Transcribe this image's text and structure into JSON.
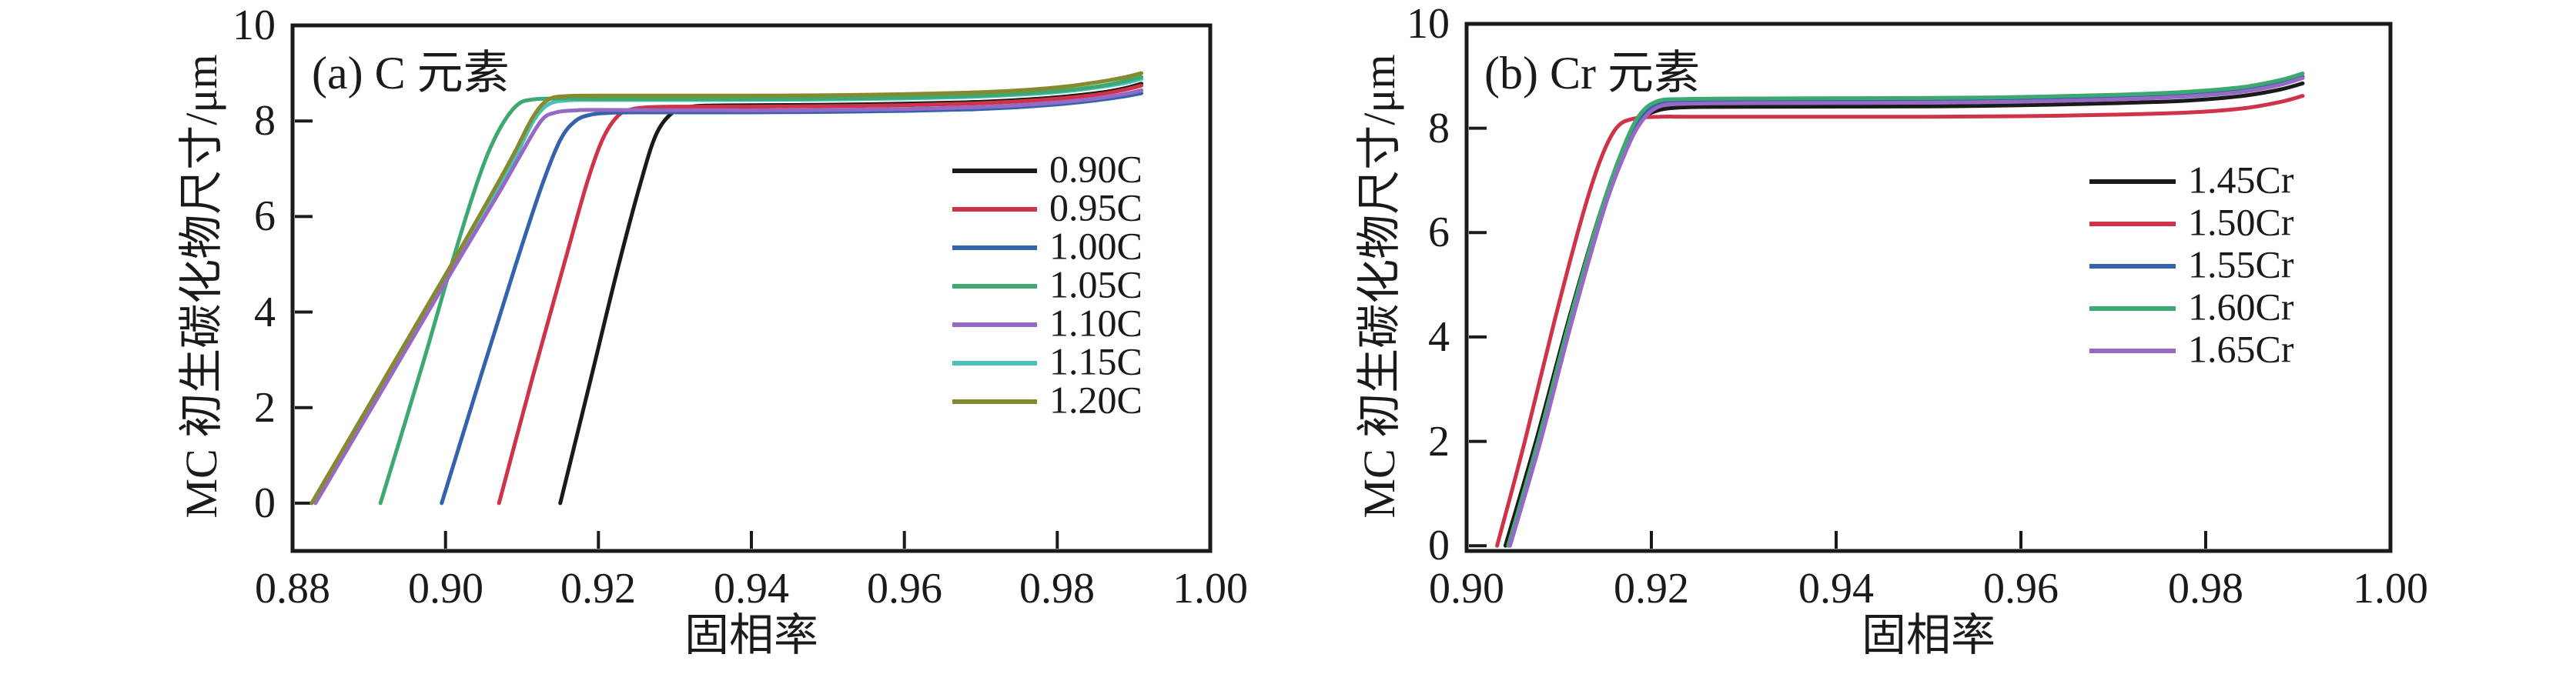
{
  "figure": {
    "background": "#ffffff",
    "frame_color": "#1a1a1a"
  },
  "chart_data": [
    {
      "type": "line",
      "panel": "a",
      "title": "(a) C 元素",
      "xlabel": "固相率",
      "ylabel": "MC 初生碳化物尺寸/μm",
      "xlim": [
        0.88,
        1.0
      ],
      "ylim": [
        -1,
        10
      ],
      "grid": false,
      "legend_position": "right-center",
      "x_ticks": {
        "values": [
          0.88,
          0.9,
          0.92,
          0.94,
          0.96,
          0.98,
          1.0
        ],
        "labels": [
          "0.88",
          "0.90",
          "0.92",
          "0.94",
          "0.96",
          "0.98",
          "1.00"
        ]
      },
      "y_ticks": {
        "values": [
          10,
          8,
          6,
          4,
          2,
          0
        ],
        "labels": [
          "10",
          "8",
          "6",
          "4",
          "2",
          "0"
        ]
      },
      "series": [
        {
          "name": "0.90C",
          "color": "#1a1a1a",
          "z": 1,
          "points": [
            [
              0.915,
              0
            ],
            [
              0.919,
              2.6
            ],
            [
              0.9225,
              4.9
            ],
            [
              0.9255,
              6.7
            ],
            [
              0.9275,
              7.7
            ],
            [
              0.9295,
              8.15
            ],
            [
              0.9315,
              8.28
            ],
            [
              0.934,
              8.32
            ],
            [
              0.94,
              8.33
            ],
            [
              0.95,
              8.34
            ],
            [
              0.96,
              8.36
            ],
            [
              0.968,
              8.39
            ],
            [
              0.975,
              8.44
            ],
            [
              0.981,
              8.51
            ],
            [
              0.986,
              8.6
            ],
            [
              0.989,
              8.69
            ],
            [
              0.991,
              8.78
            ]
          ]
        },
        {
          "name": "0.95C",
          "color": "#cf3349",
          "z": 2,
          "points": [
            [
              0.907,
              0
            ],
            [
              0.9115,
              2.7
            ],
            [
              0.9155,
              5.0
            ],
            [
              0.9185,
              6.7
            ],
            [
              0.9205,
              7.6
            ],
            [
              0.9225,
              8.1
            ],
            [
              0.9245,
              8.25
            ],
            [
              0.927,
              8.29
            ],
            [
              0.93,
              8.3
            ],
            [
              0.94,
              8.3
            ],
            [
              0.95,
              8.31
            ],
            [
              0.96,
              8.33
            ],
            [
              0.968,
              8.36
            ],
            [
              0.975,
              8.41
            ],
            [
              0.981,
              8.48
            ],
            [
              0.986,
              8.57
            ],
            [
              0.989,
              8.66
            ],
            [
              0.991,
              8.74
            ]
          ]
        },
        {
          "name": "1.00C",
          "color": "#3463ad",
          "z": 3,
          "points": [
            [
              0.8995,
              0
            ],
            [
              0.9045,
              2.6
            ],
            [
              0.909,
              4.9
            ],
            [
              0.9125,
              6.6
            ],
            [
              0.915,
              7.6
            ],
            [
              0.917,
              8.0
            ],
            [
              0.919,
              8.13
            ],
            [
              0.9215,
              8.17
            ],
            [
              0.925,
              8.18
            ],
            [
              0.94,
              8.18
            ],
            [
              0.95,
              8.19
            ],
            [
              0.96,
              8.21
            ],
            [
              0.968,
              8.24
            ],
            [
              0.975,
              8.29
            ],
            [
              0.981,
              8.36
            ],
            [
              0.986,
              8.45
            ],
            [
              0.989,
              8.52
            ],
            [
              0.991,
              8.58
            ]
          ]
        },
        {
          "name": "1.05C",
          "color": "#3ea871",
          "z": 4,
          "points": [
            [
              0.8915,
              0
            ],
            [
              0.897,
              2.9
            ],
            [
              0.9008,
              5.0
            ],
            [
              0.9035,
              6.4
            ],
            [
              0.9055,
              7.3
            ],
            [
              0.9075,
              7.95
            ],
            [
              0.9095,
              8.35
            ],
            [
              0.9115,
              8.45
            ],
            [
              0.915,
              8.47
            ],
            [
              0.92,
              8.46
            ],
            [
              0.94,
              8.46
            ],
            [
              0.95,
              8.47
            ],
            [
              0.96,
              8.49
            ],
            [
              0.968,
              8.52
            ],
            [
              0.975,
              8.57
            ],
            [
              0.981,
              8.64
            ],
            [
              0.986,
              8.74
            ],
            [
              0.989,
              8.84
            ],
            [
              0.991,
              8.92
            ]
          ]
        },
        {
          "name": "1.10C",
          "color": "#9569c4",
          "z": 5,
          "points": [
            [
              0.883,
              0
            ],
            [
              0.8935,
              2.85
            ],
            [
              0.901,
              4.9
            ],
            [
              0.907,
              6.5
            ],
            [
              0.9095,
              7.2
            ],
            [
              0.9125,
              8.0
            ],
            [
              0.9145,
              8.18
            ],
            [
              0.917,
              8.22
            ],
            [
              0.92,
              8.23
            ],
            [
              0.94,
              8.22
            ],
            [
              0.95,
              8.23
            ],
            [
              0.96,
              8.25
            ],
            [
              0.968,
              8.28
            ],
            [
              0.975,
              8.33
            ],
            [
              0.981,
              8.4
            ],
            [
              0.986,
              8.49
            ],
            [
              0.989,
              8.57
            ],
            [
              0.991,
              8.64
            ]
          ]
        },
        {
          "name": "1.15C",
          "color": "#4cc0b8",
          "z": 0,
          "points": [
            [
              0.8825,
              0
            ],
            [
              0.893,
              2.85
            ],
            [
              0.9008,
              4.95
            ],
            [
              0.9065,
              6.5
            ],
            [
              0.909,
              7.2
            ],
            [
              0.9115,
              8.0
            ],
            [
              0.9135,
              8.35
            ],
            [
              0.916,
              8.43
            ],
            [
              0.92,
              8.44
            ],
            [
              0.94,
              8.44
            ],
            [
              0.95,
              8.45
            ],
            [
              0.96,
              8.47
            ],
            [
              0.968,
              8.5
            ],
            [
              0.975,
              8.55
            ],
            [
              0.981,
              8.62
            ],
            [
              0.986,
              8.72
            ],
            [
              0.989,
              8.8
            ],
            [
              0.991,
              8.88
            ]
          ]
        },
        {
          "name": "1.20C",
          "color": "#868a2e",
          "z": 6,
          "points": [
            [
              0.8825,
              0
            ],
            [
              0.893,
              2.87
            ],
            [
              0.9008,
              5.0
            ],
            [
              0.9065,
              6.6
            ],
            [
              0.9089,
              7.3
            ],
            [
              0.9115,
              8.1
            ],
            [
              0.9135,
              8.45
            ],
            [
              0.916,
              8.52
            ],
            [
              0.92,
              8.53
            ],
            [
              0.94,
              8.53
            ],
            [
              0.95,
              8.54
            ],
            [
              0.96,
              8.56
            ],
            [
              0.968,
              8.59
            ],
            [
              0.975,
              8.64
            ],
            [
              0.981,
              8.72
            ],
            [
              0.986,
              8.83
            ],
            [
              0.989,
              8.92
            ],
            [
              0.991,
              9.0
            ]
          ]
        }
      ]
    },
    {
      "type": "line",
      "panel": "b",
      "title": "(b) Cr 元素",
      "xlabel": "固相率",
      "ylabel": "MC 初生碳化物尺寸/μm",
      "xlim": [
        0.9,
        1.0
      ],
      "ylim": [
        -0.1,
        10
      ],
      "grid": false,
      "legend_position": "right-center",
      "x_ticks": {
        "values": [
          0.9,
          0.92,
          0.94,
          0.96,
          0.98,
          1.0
        ],
        "labels": [
          "0.90",
          "0.92",
          "0.94",
          "0.96",
          "0.98",
          "1.00"
        ]
      },
      "y_ticks": {
        "values": [
          10,
          8,
          6,
          4,
          2,
          0
        ],
        "labels": [
          "10",
          "8",
          "6",
          "4",
          "2",
          "0"
        ]
      },
      "series": [
        {
          "name": "1.45Cr",
          "color": "#1a1a1a",
          "z": 1,
          "points": [
            [
              0.9042,
              0
            ],
            [
              0.9075,
              2.0
            ],
            [
              0.911,
              4.3
            ],
            [
              0.9145,
              6.4
            ],
            [
              0.9168,
              7.5
            ],
            [
              0.9185,
              8.1
            ],
            [
              0.9205,
              8.33
            ],
            [
              0.9235,
              8.4
            ],
            [
              0.93,
              8.41
            ],
            [
              0.95,
              8.42
            ],
            [
              0.96,
              8.44
            ],
            [
              0.97,
              8.48
            ],
            [
              0.978,
              8.53
            ],
            [
              0.984,
              8.62
            ],
            [
              0.988,
              8.74
            ],
            [
              0.9905,
              8.86
            ]
          ]
        },
        {
          "name": "1.50Cr",
          "color": "#cf3349",
          "z": 2,
          "points": [
            [
              0.9033,
              0
            ],
            [
              0.9063,
              2.0
            ],
            [
              0.9095,
              4.3
            ],
            [
              0.9125,
              6.3
            ],
            [
              0.9145,
              7.4
            ],
            [
              0.9162,
              8.0
            ],
            [
              0.918,
              8.18
            ],
            [
              0.921,
              8.22
            ],
            [
              0.925,
              8.22
            ],
            [
              0.94,
              8.22
            ],
            [
              0.95,
              8.22
            ],
            [
              0.96,
              8.23
            ],
            [
              0.97,
              8.26
            ],
            [
              0.978,
              8.3
            ],
            [
              0.984,
              8.38
            ],
            [
              0.988,
              8.5
            ],
            [
              0.9905,
              8.62
            ]
          ]
        },
        {
          "name": "1.55Cr",
          "color": "#3463ad",
          "z": 3,
          "points": [
            [
              0.9045,
              0
            ],
            [
              0.9078,
              2.0
            ],
            [
              0.9112,
              4.3
            ],
            [
              0.9147,
              6.4
            ],
            [
              0.917,
              7.55
            ],
            [
              0.9188,
              8.18
            ],
            [
              0.9208,
              8.45
            ],
            [
              0.9238,
              8.5
            ],
            [
              0.93,
              8.51
            ],
            [
              0.95,
              8.52
            ],
            [
              0.96,
              8.54
            ],
            [
              0.97,
              8.58
            ],
            [
              0.978,
              8.64
            ],
            [
              0.984,
              8.73
            ],
            [
              0.988,
              8.86
            ],
            [
              0.9905,
              8.99
            ]
          ]
        },
        {
          "name": "1.60Cr",
          "color": "#3ea871",
          "z": 4,
          "points": [
            [
              0.9045,
              0
            ],
            [
              0.9078,
              2.05
            ],
            [
              0.9112,
              4.35
            ],
            [
              0.9146,
              6.45
            ],
            [
              0.9169,
              7.6
            ],
            [
              0.9187,
              8.25
            ],
            [
              0.9207,
              8.52
            ],
            [
              0.9237,
              8.56
            ],
            [
              0.93,
              8.57
            ],
            [
              0.95,
              8.58
            ],
            [
              0.96,
              8.6
            ],
            [
              0.97,
              8.64
            ],
            [
              0.978,
              8.7
            ],
            [
              0.984,
              8.79
            ],
            [
              0.988,
              8.92
            ],
            [
              0.9905,
              9.05
            ]
          ]
        },
        {
          "name": "1.65Cr",
          "color": "#9569c4",
          "z": 5,
          "points": [
            [
              0.9047,
              0
            ],
            [
              0.908,
              2.0
            ],
            [
              0.9114,
              4.3
            ],
            [
              0.9148,
              6.4
            ],
            [
              0.9171,
              7.5
            ],
            [
              0.9189,
              8.12
            ],
            [
              0.9209,
              8.42
            ],
            [
              0.9239,
              8.47
            ],
            [
              0.93,
              8.48
            ],
            [
              0.95,
              8.49
            ],
            [
              0.96,
              8.51
            ],
            [
              0.97,
              8.55
            ],
            [
              0.978,
              8.61
            ],
            [
              0.984,
              8.7
            ],
            [
              0.988,
              8.83
            ],
            [
              0.9905,
              8.96
            ]
          ]
        }
      ]
    }
  ]
}
